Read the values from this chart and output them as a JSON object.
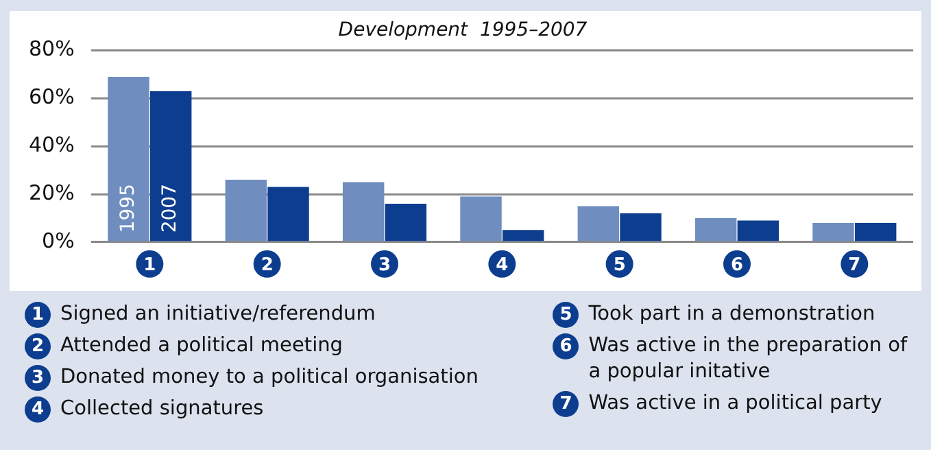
{
  "chart_data": {
    "type": "bar",
    "title": "Development  1995–2007",
    "categories": [
      "1",
      "2",
      "3",
      "4",
      "5",
      "6",
      "7"
    ],
    "series": [
      {
        "name": "1995",
        "color": "#6f8dbf",
        "values": [
          69,
          26,
          25,
          19,
          15,
          10,
          8
        ]
      },
      {
        "name": "2007",
        "color": "#0d3d8f",
        "values": [
          63,
          23,
          16,
          5,
          12,
          9,
          8
        ]
      }
    ],
    "ylim": [
      0,
      80
    ],
    "yticks": [
      {
        "value": 0,
        "label": "0%"
      },
      {
        "value": 20,
        "label": "20%"
      },
      {
        "value": 40,
        "label": "40%"
      },
      {
        "value": 60,
        "label": "60%"
      },
      {
        "value": 80,
        "label": "80%"
      }
    ],
    "grid": "y",
    "legend": false,
    "annotations": [
      "Signed an initiative/referendum",
      "Attended a political meeting",
      "Donated money to a political organisation",
      "Collected signatures",
      "Took part in a demonstration",
      "Was active in the preparation of a popular initative",
      "Was active in a political party"
    ]
  }
}
